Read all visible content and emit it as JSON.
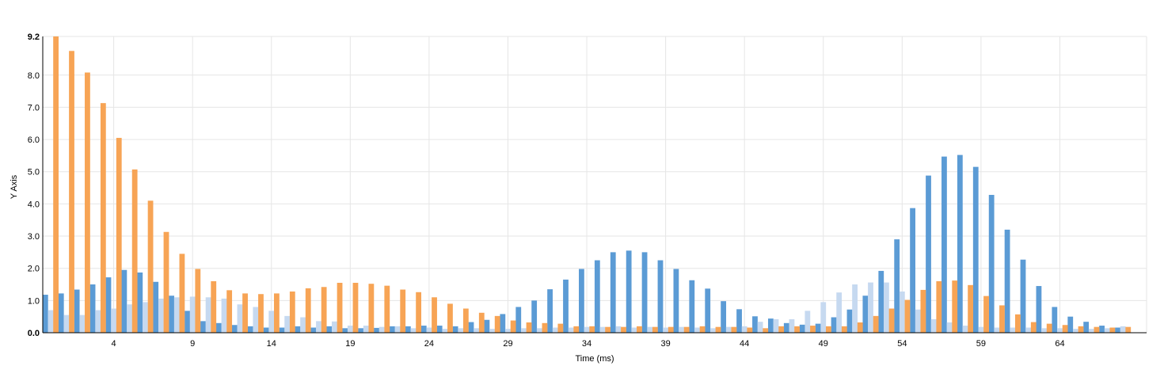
{
  "chart_data": {
    "type": "bar",
    "xlabel": "Time (ms)",
    "ylabel": "Y Axis",
    "ylim": [
      0,
      9.2
    ],
    "yticks": [
      "0.0",
      "1.0",
      "2.0",
      "3.0",
      "4.0",
      "5.0",
      "6.0",
      "7.0",
      "8.0",
      "9.2"
    ],
    "ytick_values": [
      0,
      1,
      2,
      3,
      4,
      5,
      6,
      7,
      8,
      9.2
    ],
    "xticks": [
      "4",
      "9",
      "14",
      "19",
      "24",
      "29",
      "34",
      "39",
      "44",
      "49",
      "54",
      "59",
      "64"
    ],
    "xtick_values": [
      4,
      9,
      14,
      19,
      24,
      29,
      34,
      39,
      44,
      49,
      54,
      59,
      64
    ],
    "x": [
      0,
      1,
      2,
      3,
      4,
      5,
      6,
      7,
      8,
      9,
      10,
      11,
      12,
      13,
      14,
      15,
      16,
      17,
      18,
      19,
      20,
      21,
      22,
      23,
      24,
      25,
      26,
      27,
      28,
      29,
      30,
      31,
      32,
      33,
      34,
      35,
      36,
      37,
      38,
      39,
      40,
      41,
      42,
      43,
      44,
      45,
      46,
      47,
      48,
      49,
      50,
      51,
      52,
      53,
      54,
      55,
      56,
      57,
      58,
      59,
      60,
      61,
      62,
      63,
      64,
      65,
      66,
      67,
      68,
      69
    ],
    "grid": true,
    "series": [
      {
        "color": "#5b9bd5",
        "values": [
          1.18,
          1.22,
          1.34,
          1.5,
          1.72,
          1.95,
          1.87,
          1.58,
          1.15,
          0.68,
          0.36,
          0.3,
          0.24,
          0.2,
          0.16,
          0.16,
          0.2,
          0.16,
          0.2,
          0.14,
          0.14,
          0.15,
          0.2,
          0.2,
          0.22,
          0.22,
          0.2,
          0.33,
          0.4,
          0.58,
          0.8,
          1.0,
          1.35,
          1.65,
          1.98,
          2.25,
          2.5,
          2.55,
          2.5,
          2.25,
          1.98,
          1.63,
          1.37,
          0.98,
          0.73,
          0.51,
          0.44,
          0.3,
          0.25,
          0.28,
          0.48,
          0.72,
          1.15,
          1.92,
          2.9,
          3.87,
          4.88,
          5.47,
          5.52,
          5.15,
          4.28,
          3.2,
          2.27,
          1.45,
          0.8,
          0.5,
          0.34,
          0.22,
          0.16,
          0.0
        ]
      },
      {
        "color": "#c6d9f0",
        "values": [
          0.7,
          0.55,
          0.55,
          0.7,
          0.75,
          0.88,
          0.95,
          1.06,
          1.1,
          1.12,
          1.1,
          1.06,
          0.88,
          0.8,
          0.68,
          0.52,
          0.48,
          0.36,
          0.35,
          0.22,
          0.22,
          0.18,
          0.2,
          0.14,
          0.16,
          0.12,
          0.14,
          0.14,
          0.12,
          0.12,
          0.14,
          0.14,
          0.16,
          0.16,
          0.18,
          0.18,
          0.2,
          0.16,
          0.18,
          0.16,
          0.18,
          0.16,
          0.14,
          0.18,
          0.2,
          0.34,
          0.42,
          0.42,
          0.68,
          0.95,
          1.25,
          1.5,
          1.56,
          1.56,
          1.28,
          0.72,
          0.42,
          0.32,
          0.22,
          0.18,
          0.16,
          0.16,
          0.16,
          0.14,
          0.14,
          0.12,
          0.12,
          0.14,
          0.2,
          0.0
        ]
      },
      {
        "color": "#f7a455",
        "values": [
          9.2,
          8.75,
          8.08,
          7.13,
          6.05,
          5.07,
          4.1,
          3.13,
          2.45,
          1.98,
          1.6,
          1.32,
          1.22,
          1.2,
          1.22,
          1.28,
          1.38,
          1.42,
          1.55,
          1.55,
          1.52,
          1.46,
          1.34,
          1.26,
          1.1,
          0.9,
          0.75,
          0.62,
          0.52,
          0.38,
          0.32,
          0.3,
          0.28,
          0.2,
          0.2,
          0.18,
          0.18,
          0.2,
          0.18,
          0.18,
          0.18,
          0.2,
          0.18,
          0.18,
          0.16,
          0.14,
          0.2,
          0.2,
          0.22,
          0.2,
          0.2,
          0.32,
          0.52,
          0.75,
          1.02,
          1.33,
          1.6,
          1.62,
          1.48,
          1.14,
          0.85,
          0.57,
          0.33,
          0.28,
          0.24,
          0.2,
          0.18,
          0.16,
          0.18,
          0.0
        ]
      }
    ]
  }
}
